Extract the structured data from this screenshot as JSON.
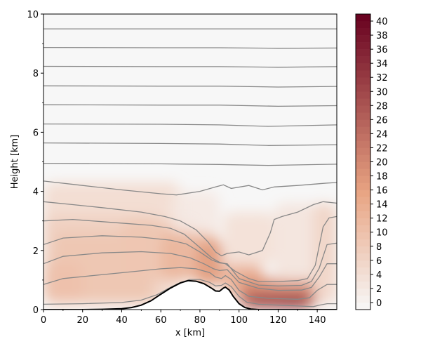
{
  "chart_data": {
    "type": "heatmap",
    "title": "",
    "xlabel": "x [km]",
    "ylabel": "Height [km]",
    "xlim": [
      0,
      150
    ],
    "ylim": [
      0,
      10
    ],
    "xticks": [
      0,
      20,
      40,
      60,
      80,
      100,
      120,
      140
    ],
    "xtick_labels": [
      "0",
      "20",
      "40",
      "60",
      "80",
      "100",
      "120",
      "140"
    ],
    "yticks": [
      0,
      2,
      4,
      6,
      8,
      10
    ],
    "ytick_labels": [
      "0",
      "2",
      "4",
      "6",
      "8",
      "10"
    ],
    "grid": false,
    "legend": "none",
    "colorbar": {
      "position": "right",
      "min": -1,
      "max": 41,
      "levels": [
        -1,
        0,
        1,
        2,
        3,
        4,
        5,
        6,
        7,
        8,
        9,
        10,
        11,
        12,
        13,
        14,
        15,
        16,
        17,
        18,
        19,
        20,
        21,
        22,
        23,
        24,
        25,
        26,
        27,
        28,
        29,
        30,
        31,
        32,
        33,
        34,
        35,
        36,
        37,
        38,
        39,
        40,
        41
      ],
      "ticks": [
        0,
        2,
        4,
        6,
        8,
        10,
        12,
        14,
        16,
        18,
        20,
        22,
        24,
        26,
        28,
        30,
        32,
        34,
        36,
        38,
        40
      ],
      "tick_labels": [
        "0",
        "2",
        "4",
        "6",
        "8",
        "10",
        "12",
        "14",
        "16",
        "18",
        "20",
        "22",
        "24",
        "26",
        "28",
        "30",
        "32",
        "34",
        "36",
        "38",
        "40"
      ],
      "color_low": "#f7f7f7",
      "color_mid": "#e8a382",
      "color_high": "#67001f"
    },
    "terrain": {
      "x": [
        0,
        10,
        20,
        30,
        40,
        45,
        50,
        55,
        60,
        65,
        70,
        74,
        78,
        82,
        86,
        88,
        90,
        92,
        93,
        95,
        97,
        100,
        103,
        106,
        110,
        115,
        120,
        130,
        150
      ],
      "y": [
        0,
        0,
        0,
        0.01,
        0.03,
        0.07,
        0.15,
        0.3,
        0.52,
        0.73,
        0.9,
        0.98,
        0.96,
        0.88,
        0.72,
        0.63,
        0.62,
        0.73,
        0.76,
        0.66,
        0.45,
        0.2,
        0.07,
        0.02,
        0,
        0,
        0,
        0,
        0
      ]
    },
    "isentropes": [
      {
        "x": [
          0,
          150
        ],
        "y": [
          9.5,
          9.5
        ]
      },
      {
        "x": [
          0,
          60,
          90,
          120,
          150
        ],
        "y": [
          8.87,
          8.86,
          8.86,
          8.84,
          8.85
        ]
      },
      {
        "x": [
          0,
          60,
          90,
          120,
          150
        ],
        "y": [
          8.23,
          8.22,
          8.22,
          8.2,
          8.22
        ]
      },
      {
        "x": [
          0,
          60,
          90,
          120,
          150
        ],
        "y": [
          7.57,
          7.56,
          7.56,
          7.53,
          7.55
        ]
      },
      {
        "x": [
          0,
          60,
          90,
          120,
          150
        ],
        "y": [
          6.93,
          6.92,
          6.92,
          6.88,
          6.9
        ]
      },
      {
        "x": [
          0,
          60,
          90,
          115,
          150
        ],
        "y": [
          6.28,
          6.27,
          6.25,
          6.2,
          6.25
        ]
      },
      {
        "x": [
          0,
          60,
          90,
          115,
          150
        ],
        "y": [
          5.64,
          5.62,
          5.6,
          5.55,
          5.58
        ]
      },
      {
        "x": [
          0,
          60,
          90,
          115,
          150
        ],
        "y": [
          4.95,
          4.93,
          4.91,
          4.88,
          4.92
        ]
      },
      {
        "x": [
          0,
          20,
          40,
          60,
          68,
          80,
          88,
          92,
          96,
          105,
          112,
          118,
          130,
          145,
          150
        ],
        "y": [
          4.35,
          4.2,
          4.05,
          3.92,
          3.88,
          4.0,
          4.15,
          4.22,
          4.1,
          4.2,
          4.05,
          4.15,
          4.2,
          4.28,
          4.3
        ]
      },
      {
        "x": [
          0,
          15,
          30,
          50,
          62,
          70,
          78,
          84,
          88,
          91,
          94,
          100,
          105,
          112,
          116,
          118,
          122,
          130,
          138,
          143,
          150
        ],
        "y": [
          3.65,
          3.55,
          3.45,
          3.3,
          3.15,
          3.0,
          2.7,
          2.3,
          1.95,
          1.82,
          1.9,
          1.95,
          1.85,
          2.0,
          2.6,
          3.05,
          3.15,
          3.3,
          3.55,
          3.65,
          3.6
        ]
      },
      {
        "x": [
          0,
          15,
          35,
          55,
          65,
          72,
          80,
          86,
          90,
          93,
          98,
          105,
          110,
          120,
          130,
          135,
          139,
          143,
          146,
          150
        ],
        "y": [
          3.0,
          3.05,
          2.95,
          2.85,
          2.75,
          2.55,
          2.1,
          1.75,
          1.6,
          1.55,
          1.3,
          1.05,
          0.95,
          0.95,
          0.98,
          1.05,
          1.5,
          2.8,
          3.1,
          3.15
        ]
      },
      {
        "x": [
          0,
          10,
          30,
          50,
          65,
          73,
          80,
          86,
          90,
          94,
          100,
          110,
          120,
          132,
          137,
          141,
          145,
          150
        ],
        "y": [
          2.2,
          2.42,
          2.5,
          2.45,
          2.35,
          2.22,
          1.95,
          1.68,
          1.58,
          1.55,
          1.05,
          0.83,
          0.8,
          0.82,
          0.95,
          1.4,
          2.2,
          2.25
        ]
      },
      {
        "x": [
          0,
          10,
          30,
          50,
          65,
          75,
          82,
          87,
          90,
          94,
          100,
          110,
          120,
          132,
          137,
          141,
          145,
          150
        ],
        "y": [
          1.55,
          1.8,
          1.92,
          1.96,
          1.9,
          1.75,
          1.55,
          1.38,
          1.32,
          1.35,
          0.92,
          0.72,
          0.65,
          0.66,
          0.75,
          1.1,
          1.55,
          1.55
        ]
      },
      {
        "x": [
          0,
          10,
          25,
          45,
          60,
          70,
          78,
          85,
          88,
          91,
          93,
          96,
          100,
          105,
          115,
          130,
          136,
          140,
          145,
          150
        ],
        "y": [
          0.85,
          1.05,
          1.15,
          1.28,
          1.38,
          1.42,
          1.38,
          1.25,
          1.1,
          1.05,
          1.15,
          1.02,
          0.65,
          0.45,
          0.38,
          0.35,
          0.4,
          0.65,
          0.85,
          0.85
        ]
      },
      {
        "x": [
          0,
          20,
          40,
          50,
          58,
          64,
          70,
          75,
          80,
          85,
          88,
          91,
          93,
          96,
          100,
          104,
          110,
          120,
          130,
          138,
          141,
          145,
          150
        ],
        "y": [
          0.18,
          0.2,
          0.24,
          0.32,
          0.5,
          0.72,
          0.92,
          1.02,
          1.02,
          0.92,
          0.8,
          0.82,
          0.9,
          0.78,
          0.45,
          0.25,
          0.18,
          0.15,
          0.12,
          0.1,
          0.15,
          0.2,
          0.2
        ]
      }
    ],
    "shading_cells": [
      {
        "x": [
          0,
          70
        ],
        "y": [
          0.15,
          4.3
        ],
        "value": 5
      },
      {
        "x": [
          0,
          60
        ],
        "y": [
          0.2,
          3.2
        ],
        "value": 7
      },
      {
        "x": [
          5,
          55
        ],
        "y": [
          0.3,
          2.6
        ],
        "value": 9
      },
      {
        "x": [
          0,
          20
        ],
        "y": [
          0.3,
          1.6
        ],
        "value": 10
      },
      {
        "x": [
          40,
          78
        ],
        "y": [
          1.0,
          3.0
        ],
        "value": 9
      },
      {
        "x": [
          60,
          90
        ],
        "y": [
          1.0,
          2.6
        ],
        "value": 12
      },
      {
        "x": [
          78,
          92
        ],
        "y": [
          0.8,
          2.3
        ],
        "value": 17
      },
      {
        "x": [
          92,
          112
        ],
        "y": [
          0.5,
          1.6
        ],
        "value": 15
      },
      {
        "x": [
          100,
          140
        ],
        "y": [
          0.05,
          1.1
        ],
        "value": 18
      },
      {
        "x": [
          100,
          140
        ],
        "y": [
          0.05,
          0.7
        ],
        "value": 24
      },
      {
        "x": [
          105,
          135
        ],
        "y": [
          0.05,
          0.45
        ],
        "value": 30
      },
      {
        "x": [
          120,
          135
        ],
        "y": [
          0.05,
          0.25
        ],
        "value": 33
      },
      {
        "x": [
          92,
          118
        ],
        "y": [
          1.5,
          3.3
        ],
        "value": 4
      },
      {
        "x": [
          118,
          150
        ],
        "y": [
          1.0,
          3.6
        ],
        "value": 3
      },
      {
        "x": [
          138,
          150
        ],
        "y": [
          0.2,
          3.6
        ],
        "value": 6
      },
      {
        "x": [
          65,
          90
        ],
        "y": [
          2.6,
          4.0
        ],
        "value": 2
      }
    ]
  }
}
